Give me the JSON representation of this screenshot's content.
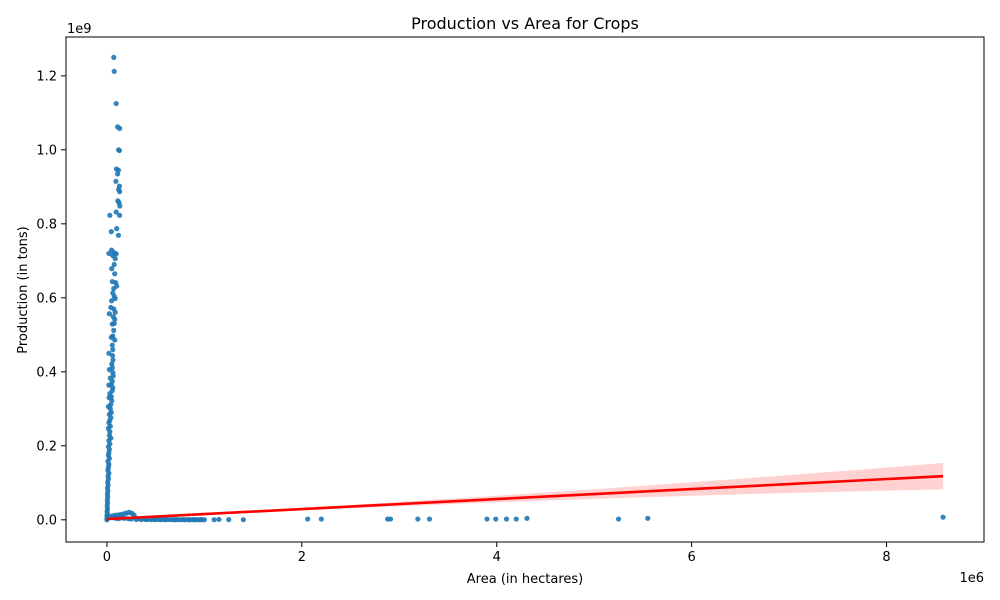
{
  "chart_data": {
    "type": "scatter",
    "title": "Production vs Area for Crops",
    "xlabel": "Area (in hectares)",
    "ylabel": "Production (in tons)",
    "x_offset_label": "1e6",
    "y_offset_label": "1e9",
    "xlim": [
      -420000,
      9000000
    ],
    "ylim": [
      -60000000,
      1305000000
    ],
    "x_ticks": [
      0,
      2000000,
      4000000,
      6000000,
      8000000
    ],
    "x_tick_labels": [
      "0",
      "2",
      "4",
      "6",
      "8"
    ],
    "y_ticks": [
      0,
      200000000,
      400000000,
      600000000,
      800000000,
      1000000000,
      1200000000
    ],
    "y_tick_labels": [
      "0.0",
      "0.2",
      "0.4",
      "0.6",
      "0.8",
      "1.0",
      "1.2"
    ],
    "grid": false,
    "point_color": "#1f77b4",
    "regression": {
      "color": "#ff0000",
      "band_color": "#ffb3b3",
      "x": [
        0,
        8580000
      ],
      "y": [
        2000000,
        118000000
      ],
      "band_at_max_x": [
        90000000,
        158000000
      ]
    },
    "points": [
      [
        70000,
        1250000000
      ],
      [
        75000,
        1212000000
      ],
      [
        95000,
        1125000000
      ],
      [
        110000,
        1062000000
      ],
      [
        130000,
        1058000000
      ],
      [
        120000,
        1000000000
      ],
      [
        128000,
        998000000
      ],
      [
        98000,
        948000000
      ],
      [
        118000,
        945000000
      ],
      [
        110000,
        935000000
      ],
      [
        92000,
        915000000
      ],
      [
        128000,
        902000000
      ],
      [
        120000,
        893000000
      ],
      [
        130000,
        887000000
      ],
      [
        112000,
        862000000
      ],
      [
        125000,
        857000000
      ],
      [
        132000,
        848000000
      ],
      [
        95000,
        832000000
      ],
      [
        130000,
        823000000
      ],
      [
        30000,
        823000000
      ],
      [
        100000,
        787000000
      ],
      [
        45000,
        779000000
      ],
      [
        118000,
        769000000
      ],
      [
        48000,
        729000000
      ],
      [
        20000,
        720000000
      ],
      [
        75000,
        722000000
      ],
      [
        95000,
        719000000
      ],
      [
        60000,
        714000000
      ],
      [
        85000,
        706000000
      ],
      [
        75000,
        690000000
      ],
      [
        50000,
        679000000
      ],
      [
        80000,
        665000000
      ],
      [
        55000,
        644000000
      ],
      [
        90000,
        641000000
      ],
      [
        100000,
        632000000
      ],
      [
        70000,
        625000000
      ],
      [
        60000,
        613000000
      ],
      [
        75000,
        604000000
      ],
      [
        85000,
        598000000
      ],
      [
        48000,
        592000000
      ],
      [
        40000,
        574000000
      ],
      [
        70000,
        570000000
      ],
      [
        85000,
        561000000
      ],
      [
        25000,
        557000000
      ],
      [
        65000,
        549000000
      ],
      [
        80000,
        542000000
      ],
      [
        75000,
        531000000
      ],
      [
        55000,
        529000000
      ],
      [
        70000,
        512000000
      ],
      [
        60000,
        497000000
      ],
      [
        45000,
        493000000
      ],
      [
        80000,
        486000000
      ],
      [
        55000,
        472000000
      ],
      [
        60000,
        460000000
      ],
      [
        20000,
        450000000
      ],
      [
        58000,
        444000000
      ],
      [
        62000,
        432000000
      ],
      [
        50000,
        421000000
      ],
      [
        55000,
        411000000
      ],
      [
        25000,
        406000000
      ],
      [
        60000,
        398000000
      ],
      [
        65000,
        389000000
      ],
      [
        35000,
        383000000
      ],
      [
        55000,
        375000000
      ],
      [
        45000,
        366000000
      ],
      [
        20000,
        364000000
      ],
      [
        60000,
        357000000
      ],
      [
        55000,
        349000000
      ],
      [
        30000,
        341000000
      ],
      [
        45000,
        333000000
      ],
      [
        22000,
        330000000
      ],
      [
        50000,
        322000000
      ],
      [
        40000,
        312000000
      ],
      [
        15000,
        306000000
      ],
      [
        35000,
        300000000
      ],
      [
        45000,
        290000000
      ],
      [
        25000,
        285000000
      ],
      [
        40000,
        276000000
      ],
      [
        30000,
        269000000
      ],
      [
        20000,
        262000000
      ],
      [
        35000,
        253000000
      ],
      [
        15000,
        247000000
      ],
      [
        30000,
        238000000
      ],
      [
        25000,
        228000000
      ],
      [
        40000,
        221000000
      ],
      [
        20000,
        214000000
      ],
      [
        30000,
        205000000
      ],
      [
        15000,
        198000000
      ],
      [
        25000,
        190000000
      ],
      [
        20000,
        181000000
      ],
      [
        15000,
        174000000
      ],
      [
        25000,
        166000000
      ],
      [
        10000,
        158000000
      ],
      [
        20000,
        150000000
      ],
      [
        15000,
        142000000
      ],
      [
        10000,
        134000000
      ],
      [
        20000,
        126000000
      ],
      [
        12000,
        118000000
      ],
      [
        15000,
        110000000
      ],
      [
        8000,
        102000000
      ],
      [
        12000,
        94000000
      ],
      [
        6000,
        86000000
      ],
      [
        10000,
        78000000
      ],
      [
        5000,
        70000000
      ],
      [
        8000,
        62000000
      ],
      [
        4000,
        54000000
      ],
      [
        6000,
        46000000
      ],
      [
        3000,
        38000000
      ],
      [
        5000,
        30000000
      ],
      [
        2000,
        24000000
      ],
      [
        4000,
        18000000
      ],
      [
        1000,
        12000000
      ],
      [
        3000,
        7000000
      ],
      [
        1000,
        3000000
      ],
      [
        0,
        0
      ],
      [
        50000,
        10000000
      ],
      [
        80000,
        12000000
      ],
      [
        110000,
        13000000
      ],
      [
        140000,
        14000000
      ],
      [
        170000,
        16000000
      ],
      [
        200000,
        18000000
      ],
      [
        230000,
        20000000
      ],
      [
        260000,
        17000000
      ],
      [
        280000,
        12000000
      ],
      [
        60000,
        6000000
      ],
      [
        90000,
        4000000
      ],
      [
        120000,
        3000000
      ],
      [
        150000,
        5000000
      ],
      [
        180000,
        4000000
      ],
      [
        220000,
        3000000
      ],
      [
        250000,
        2000000
      ],
      [
        300000,
        1000000
      ],
      [
        350000,
        800000
      ],
      [
        400000,
        600000
      ],
      [
        450000,
        500000
      ],
      [
        500000,
        400000
      ],
      [
        550000,
        300000
      ],
      [
        600000,
        300000
      ],
      [
        650000,
        300000
      ],
      [
        700000,
        200000
      ],
      [
        750000,
        200000
      ],
      [
        800000,
        200000
      ],
      [
        850000,
        200000
      ],
      [
        900000,
        100000
      ],
      [
        950000,
        100000
      ],
      [
        1000000,
        100000
      ],
      [
        320000,
        3000000
      ],
      [
        380000,
        2000000
      ],
      [
        420000,
        1500000
      ],
      [
        480000,
        1200000
      ],
      [
        530000,
        1000000
      ],
      [
        580000,
        900000
      ],
      [
        620000,
        800000
      ],
      [
        680000,
        700000
      ],
      [
        720000,
        700000
      ],
      [
        780000,
        600000
      ],
      [
        830000,
        500000
      ],
      [
        880000,
        500000
      ],
      [
        920000,
        400000
      ],
      [
        970000,
        400000
      ],
      [
        1100000,
        300000
      ],
      [
        1150000,
        1000000
      ],
      [
        1250000,
        500000
      ],
      [
        1400000,
        300000
      ],
      [
        2060000,
        2000000
      ],
      [
        2200000,
        2000000
      ],
      [
        2880000,
        2000000
      ],
      [
        2910000,
        2000000
      ],
      [
        3190000,
        2000000
      ],
      [
        3310000,
        2000000
      ],
      [
        3900000,
        2000000
      ],
      [
        3990000,
        2000000
      ],
      [
        4100000,
        2000000
      ],
      [
        4200000,
        2000000
      ],
      [
        4310000,
        4000000
      ],
      [
        5250000,
        2000000
      ],
      [
        5550000,
        4000000
      ],
      [
        8580000,
        7000000
      ]
    ]
  }
}
